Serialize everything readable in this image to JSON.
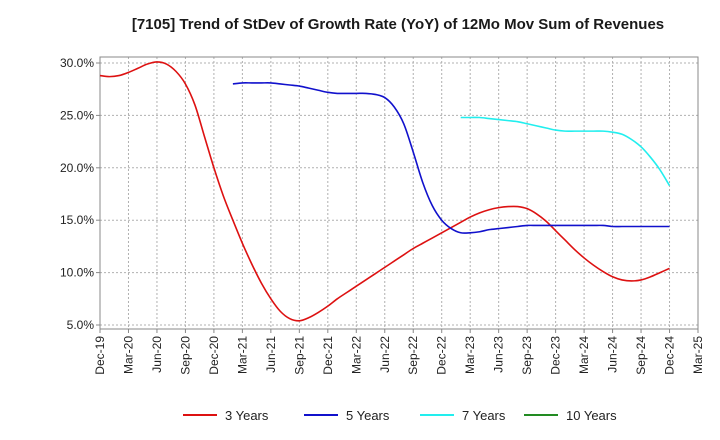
{
  "chart_data": {
    "type": "line",
    "title": "[7105]  Trend of StDev of Growth Rate (YoY) of 12Mo Mov Sum of Revenues",
    "xlabel": "",
    "ylabel": "",
    "ylim": [
      5.0,
      30.0
    ],
    "y_ticks": [
      5.0,
      10.0,
      15.0,
      20.0,
      25.0,
      30.0
    ],
    "y_tick_labels": [
      "5.0%",
      "10.0%",
      "15.0%",
      "20.0%",
      "25.0%",
      "30.0%"
    ],
    "x_tick_labels": [
      "Dec-19",
      "Mar-20",
      "Jun-20",
      "Sep-20",
      "Dec-20",
      "Mar-21",
      "Jun-21",
      "Sep-21",
      "Dec-21",
      "Mar-22",
      "Jun-22",
      "Sep-22",
      "Dec-22",
      "Mar-23",
      "Jun-23",
      "Sep-23",
      "Dec-23",
      "Mar-24",
      "Jun-24",
      "Sep-24",
      "Dec-24",
      "Mar-25"
    ],
    "x_range_months": [
      0,
      63
    ],
    "grid": true,
    "legend_position": "bottom",
    "series": [
      {
        "name": "3 Years",
        "color": "#dd1111",
        "x_months": [
          0,
          1,
          2,
          3,
          4,
          5,
          6,
          7,
          8,
          9,
          10,
          11,
          12,
          13,
          14,
          15,
          16,
          17,
          18,
          19,
          20,
          21,
          22,
          23,
          24,
          25,
          26,
          27,
          28,
          29,
          30,
          31,
          32,
          33,
          34,
          35,
          36,
          37,
          38,
          39,
          40,
          41,
          42,
          43,
          44,
          45,
          46,
          47,
          48,
          49,
          50,
          51,
          52,
          53,
          54,
          55,
          56,
          57,
          58,
          59,
          60
        ],
        "values": [
          28.8,
          28.7,
          28.8,
          29.1,
          29.5,
          29.9,
          30.1,
          29.9,
          29.2,
          28.0,
          26.0,
          23.0,
          20.0,
          17.3,
          15.0,
          12.8,
          10.8,
          9.0,
          7.5,
          6.3,
          5.6,
          5.4,
          5.7,
          6.2,
          6.8,
          7.5,
          8.1,
          8.7,
          9.3,
          9.9,
          10.5,
          11.1,
          11.7,
          12.3,
          12.8,
          13.3,
          13.8,
          14.3,
          14.8,
          15.3,
          15.7,
          16.0,
          16.2,
          16.3,
          16.3,
          16.1,
          15.6,
          14.9,
          14.0,
          13.1,
          12.2,
          11.4,
          10.7,
          10.1,
          9.6,
          9.3,
          9.2,
          9.3,
          9.6,
          10.0,
          10.4
        ]
      },
      {
        "name": "5 Years",
        "color": "#1111cc",
        "x_months": [
          14,
          15,
          16,
          17,
          18,
          19,
          20,
          21,
          22,
          23,
          24,
          25,
          26,
          27,
          28,
          29,
          30,
          31,
          32,
          33,
          34,
          35,
          36,
          37,
          38,
          39,
          40,
          41,
          42,
          43,
          44,
          45,
          46,
          47,
          48,
          49,
          50,
          51,
          52,
          53,
          54,
          55,
          56,
          57,
          58,
          59,
          60
        ],
        "values": [
          28.0,
          28.1,
          28.1,
          28.1,
          28.1,
          28.0,
          27.9,
          27.8,
          27.6,
          27.4,
          27.2,
          27.1,
          27.1,
          27.1,
          27.1,
          27.0,
          26.7,
          25.8,
          24.2,
          21.5,
          18.6,
          16.4,
          15.0,
          14.2,
          13.8,
          13.8,
          13.9,
          14.1,
          14.2,
          14.3,
          14.4,
          14.5,
          14.5,
          14.5,
          14.5,
          14.5,
          14.5,
          14.5,
          14.5,
          14.5,
          14.4,
          14.4,
          14.4,
          14.4,
          14.4,
          14.4,
          14.4
        ]
      },
      {
        "name": "7 Years",
        "color": "#22eeee",
        "x_months": [
          38,
          39,
          40,
          41,
          42,
          43,
          44,
          45,
          46,
          47,
          48,
          49,
          50,
          51,
          52,
          53,
          54,
          55,
          56,
          57,
          58,
          59,
          60
        ],
        "values": [
          24.8,
          24.8,
          24.8,
          24.7,
          24.6,
          24.5,
          24.4,
          24.2,
          24.0,
          23.8,
          23.6,
          23.5,
          23.5,
          23.5,
          23.5,
          23.5,
          23.4,
          23.2,
          22.7,
          22.0,
          21.0,
          19.8,
          18.3
        ]
      },
      {
        "name": "10 Years",
        "color": "#228b22",
        "x_months": [],
        "values": []
      }
    ]
  }
}
